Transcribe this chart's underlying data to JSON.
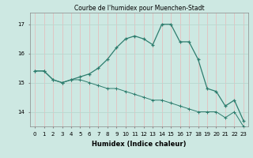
{
  "title": "Courbe de l'humidex pour Muenchen-Stadt",
  "xlabel": "Humidex (Indice chaleur)",
  "ylabel": "",
  "background_color": "#cde8e2",
  "line_color": "#2e7d6e",
  "grid_color_h": "#b8d8d0",
  "grid_color_v": "#e8b8b8",
  "x": [
    0,
    1,
    2,
    3,
    4,
    5,
    6,
    7,
    8,
    9,
    10,
    11,
    12,
    13,
    14,
    15,
    16,
    17,
    18,
    19,
    20,
    21,
    22,
    23
  ],
  "series1": [
    15.4,
    15.4,
    15.1,
    15.0,
    15.1,
    15.2,
    15.3,
    15.5,
    15.8,
    16.2,
    16.5,
    16.6,
    16.5,
    16.3,
    17.0,
    17.0,
    16.4,
    16.4,
    15.8,
    14.8,
    14.7,
    14.2,
    14.4,
    13.7
  ],
  "series2": [
    15.4,
    15.4,
    15.1,
    15.0,
    15.1,
    15.1,
    15.0,
    14.9,
    14.8,
    14.8,
    14.7,
    14.6,
    14.5,
    14.4,
    14.4,
    14.3,
    14.2,
    14.1,
    14.0,
    14.0,
    14.0,
    13.8,
    14.0,
    13.5
  ],
  "ylim": [
    13.5,
    17.4
  ],
  "yticks": [
    14,
    15,
    16,
    17
  ],
  "xticks": [
    0,
    1,
    2,
    3,
    4,
    5,
    6,
    7,
    8,
    9,
    10,
    11,
    12,
    13,
    14,
    15,
    16,
    17,
    18,
    19,
    20,
    21,
    22,
    23
  ]
}
